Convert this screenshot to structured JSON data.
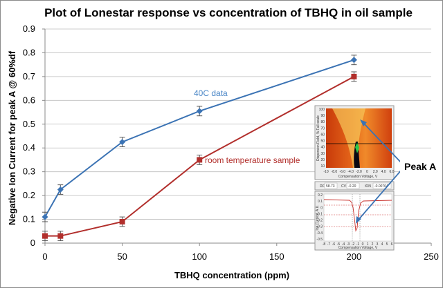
{
  "chart_data": {
    "type": "line",
    "title": "Plot of Lonestar response vs concentration of TBHQ in oil sample",
    "xlabel": "TBHQ concentration (ppm)",
    "ylabel": "Negative Ion Current for peak A @ 60%df",
    "xlim": [
      0,
      250
    ],
    "ylim": [
      0,
      0.9
    ],
    "xticks": [
      "0",
      "50",
      "100",
      "150",
      "200",
      "250"
    ],
    "yticks": [
      "0",
      "0.1",
      "0.2",
      "0.3",
      "0.4",
      "0.5",
      "0.6",
      "0.7",
      "0.8",
      "0.9"
    ],
    "grid": true,
    "series": [
      {
        "name": "40C data",
        "color": "#3b73b4",
        "marker": "diamond",
        "x": [
          0,
          10,
          50,
          100,
          200
        ],
        "y": [
          0.11,
          0.225,
          0.425,
          0.555,
          0.77
        ],
        "err": [
          0.02,
          0.02,
          0.02,
          0.02,
          0.02
        ]
      },
      {
        "name": "room temperature sample",
        "color": "#b22f2c",
        "marker": "square",
        "x": [
          0,
          10,
          50,
          100,
          200
        ],
        "y": [
          0.03,
          0.03,
          0.09,
          0.35,
          0.7
        ],
        "err": [
          0.02,
          0.02,
          0.02,
          0.02,
          0.02
        ]
      }
    ],
    "annotations": {
      "series1_label": "40C data",
      "series2_label": "room temperature sample",
      "peak_label": "Peak A"
    },
    "inset": {
      "top_ylabel": "Dispersion Field, % Full-scale",
      "top_xlabel": "Compensation Voltage, V",
      "top_xticks": [
        "-10",
        "-8.0",
        "-6.0",
        "-4.0",
        "-2.0",
        "0",
        "2.0",
        "4.0",
        "6.0"
      ],
      "top_yticks": [
        "100",
        "90",
        "80",
        "70",
        "60",
        "50",
        "40",
        "30",
        "20",
        "10"
      ],
      "info_df_label": "DF",
      "info_df": "58.73",
      "info_cv_label": "CV",
      "info_cv": "-0.20",
      "info_ion_label": "ION",
      "info_ion": "-0.00764",
      "bottom_ylabel": "Ion Current, A.U.",
      "bottom_xlabel": "Compensation Voltage, V",
      "bottom_xticks": [
        "-8",
        "-7",
        "-6",
        "-5",
        "-4",
        "-3",
        "-2",
        "-1",
        "0",
        "1",
        "2",
        "3",
        "4",
        "5",
        "6"
      ],
      "bottom_yticks": [
        "0.2",
        "0.1",
        "0",
        "-0.1",
        "-0.2",
        "-0.3",
        "-0.4",
        "-0.5"
      ]
    }
  }
}
